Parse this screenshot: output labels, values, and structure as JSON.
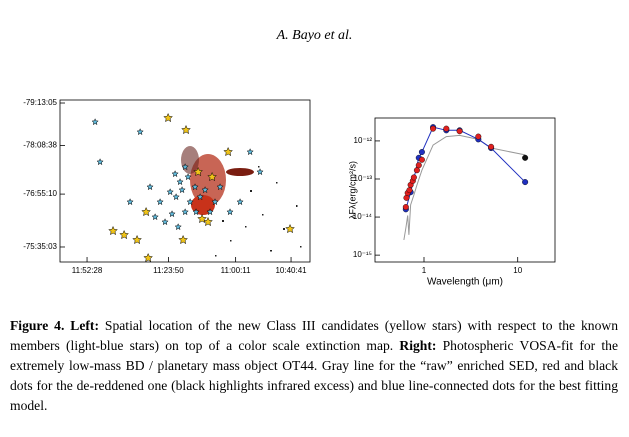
{
  "header": {
    "author": "A. Bayo et al."
  },
  "chart_data": [
    {
      "type": "scatter",
      "xlim": [
        12.033,
        10.567
      ],
      "ylim": [
        -75.205,
        -79.294
      ],
      "xticks": [
        {
          "value": 11.8744,
          "label": "11:52:28"
        },
        {
          "value": 11.3972,
          "label": "11:23:50"
        },
        {
          "value": 11.0031,
          "label": "11:00:11"
        },
        {
          "value": 10.6781,
          "label": "10:40:41"
        }
      ],
      "yticks": [
        {
          "value": -75.584,
          "label": "-75:35:03"
        },
        {
          "value": -76.919,
          "label": "-76:55:10"
        },
        {
          "value": -78.144,
          "label": "-78:08:38"
        },
        {
          "value": -79.218,
          "label": "-79:13:05"
        }
      ],
      "series": [
        {
          "color": "#5fb7d8",
          "marker": "star",
          "size": 3.2,
          "x": [
            11.417,
            11.376,
            11.34,
            11.299,
            11.27,
            11.352,
            11.317,
            11.241,
            11.282,
            11.211,
            11.182,
            11.329,
            11.387,
            11.446,
            11.475,
            11.153,
            11.124,
            11.235,
            11.299,
            11.358,
            11.094,
            11.036,
            10.977,
            11.505,
            11.622,
            11.798,
            11.827,
            11.563,
            10.918,
            10.86
          ],
          "values": [
            -76.215,
            -76.417,
            -76.089,
            -76.467,
            -76.72,
            -76.846,
            -77.023,
            -77.098,
            -77.351,
            -76.846,
            -77.023,
            -77.225,
            -76.972,
            -76.72,
            -76.341,
            -76.467,
            -76.72,
            -76.467,
            -77.603,
            -77.427,
            -77.098,
            -76.467,
            -76.72,
            -77.098,
            -76.72,
            -77.729,
            -78.739,
            -78.487,
            -77.982,
            -77.477
          ]
        },
        {
          "color": "#f0c419",
          "marker": "star",
          "size": 4.5,
          "x": [
            11.516,
            11.311,
            11.722,
            11.657,
            11.581,
            10.684,
            11.165,
            11.2,
            11.528,
            11.223,
            11.141,
            11.399,
            11.294,
            11.047
          ],
          "values": [
            -75.306,
            -75.761,
            -75.988,
            -75.887,
            -75.761,
            -76.038,
            -76.215,
            -76.291,
            -76.467,
            -77.477,
            -77.351,
            -78.84,
            -78.537,
            -77.982
          ]
        }
      ]
    },
    {
      "type": "line",
      "log_x": true,
      "log_y": true,
      "ylabel": "λFλ(erg/cm²/s)",
      "xlabel": "Wavelength (μm)",
      "xlim": [
        0.3,
        25
      ],
      "ylim": [
        6.6e-16,
        4e-12
      ],
      "xticks": [
        1,
        10
      ],
      "yticks": [
        {
          "value": 1e-12,
          "label": "10⁻¹²"
        },
        {
          "value": 1e-13,
          "label": "10⁻¹³"
        },
        {
          "value": 1e-14,
          "label": "10⁻¹⁴"
        },
        {
          "value": 1e-15,
          "label": "10⁻¹⁵"
        }
      ],
      "series": [
        {
          "color": "#999999",
          "style": "line",
          "x": [
            0.61,
            0.64,
            0.67,
            0.69,
            0.72,
            0.78,
            0.84,
            0.95,
            1.25,
            1.73,
            2.4,
            3.8,
            5.2,
            12
          ],
          "values": [
            2.5e-15,
            5.1e-15,
            1.1e-14,
            3.4e-15,
            2.1e-14,
            3.8e-14,
            6.9e-14,
            1.7e-13,
            7.8e-13,
            1.3e-12,
            1.4e-12,
            1.1e-12,
            6.5e-13,
            4.3e-13
          ]
        },
        {
          "color": "#2030c0",
          "style": "line+markers",
          "x": [
            0.64,
            0.72,
            0.88,
            0.95,
            1.25,
            1.73,
            2.4,
            3.8,
            5.2,
            12
          ],
          "values": [
            1.6e-14,
            4.5e-14,
            3.6e-13,
            5.1e-13,
            2.3e-12,
            1.9e-12,
            1.9e-12,
            1.1e-12,
            6.5e-13,
            8.3e-14
          ]
        },
        {
          "color": "#e02020",
          "style": "markers",
          "x": [
            0.64,
            0.65,
            0.67,
            0.7,
            0.72,
            0.76,
            0.78,
            0.84,
            0.88,
            0.95,
            1.25,
            1.73,
            2.4,
            3.8,
            5.2
          ],
          "values": [
            1.83e-14,
            3.2e-14,
            4.3e-14,
            5.1e-14,
            7e-14,
            8.9e-14,
            1.1e-13,
            1.7e-13,
            2.3e-13,
            3.2e-13,
            2.1e-12,
            2.1e-12,
            1.8e-12,
            1.3e-12,
            7e-13
          ]
        },
        {
          "color": "#111111",
          "style": "markers",
          "x": [
            12
          ],
          "values": [
            3.6e-13
          ]
        }
      ]
    }
  ],
  "caption": [
    {
      "text": "Figure 4.",
      "bold": true
    },
    {
      "text": "Left:",
      "bold": true
    },
    {
      "text": "Spatial location of the new Class III candidates (yellow stars) with respect to the known members (light-blue stars) on top of a color scale extinction map.",
      "bold": false
    },
    {
      "text": "Right:",
      "bold": true
    },
    {
      "text": "Photospheric VOSA-fit for the extremely low-mass BD / planetary mass object OT44. Gray line for the “raw” enriched SED, red and black dots for the de-reddened one (black highlights infrared excess) and blue line-connected dots for the best fitting model.",
      "bold": false
    }
  ]
}
